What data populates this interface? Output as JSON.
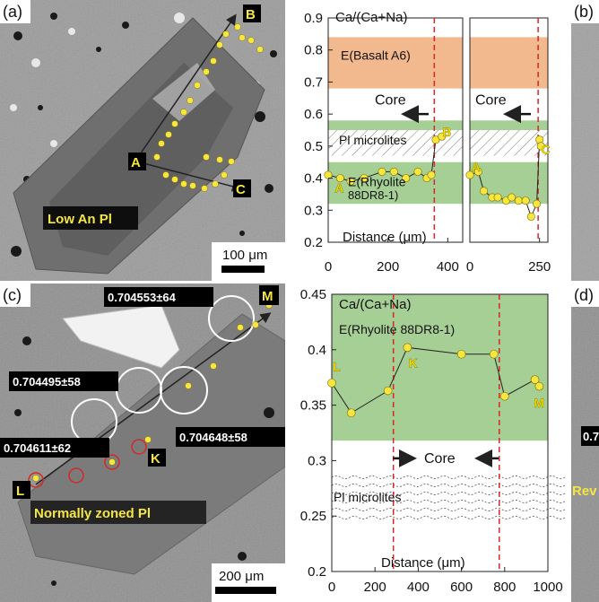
{
  "panels": {
    "a": {
      "tag": "(a)",
      "caption": "Low An Pl",
      "scale": "100 μm",
      "points": [
        "A",
        "B",
        "C"
      ]
    },
    "b": {
      "tag": "(b)"
    },
    "c": {
      "tag": "(c)",
      "caption": "Normally zoned Pl",
      "scale": "200 μm",
      "points": [
        "L",
        "K",
        "M"
      ],
      "isotopes": [
        "0.704553±64",
        "0.704495±58",
        "0.704611±62",
        "0.704648±58"
      ]
    },
    "d": {
      "tag": "(d)",
      "cut_text_1": "0.7",
      "cut_text_2": "Rev"
    }
  },
  "colors": {
    "basalt_band": "#f2b98e",
    "rhyolite_band": "#a6cf95",
    "points": "#f7e63e",
    "core_line": "#d62728"
  },
  "chart_data": [
    {
      "type": "scatter",
      "ylabel": "Ca/(Ca+Na)",
      "xlabel": "Distance (μm)",
      "ylim": [
        0.2,
        0.9
      ],
      "yticks": [
        "0.2",
        "0.3",
        "0.4",
        "0.5",
        "0.6",
        "0.7",
        "0.8",
        "0.9"
      ],
      "bands": [
        {
          "label": "E(Basalt A6)",
          "range": [
            0.68,
            0.84
          ]
        },
        {
          "label": "E(Rhyolite",
          "label2": "88DR8-1)",
          "range": [
            0.32,
            0.45
          ]
        },
        {
          "label": "",
          "range": [
            0.55,
            0.58
          ]
        }
      ],
      "hatch": {
        "label": "Pl microlites",
        "range": [
          0.47,
          0.55
        ]
      },
      "core_label": "Core",
      "series": [
        {
          "xlim": [
            0,
            450
          ],
          "xticks": [
            "0",
            "200",
            "400"
          ],
          "x": [
            0,
            40,
            75,
            120,
            180,
            220,
            260,
            300,
            330,
            345,
            360,
            380
          ],
          "y": [
            0.41,
            0.4,
            0.39,
            0.4,
            0.42,
            0.42,
            0.4,
            0.42,
            0.4,
            0.41,
            0.52,
            0.53
          ],
          "core_x": 355,
          "point_labels": [
            {
              "text": "A",
              "x": 40,
              "y": 0.37
            },
            {
              "text": "B",
              "x": 400,
              "y": 0.545
            }
          ]
        },
        {
          "xlim": [
            0,
            280
          ],
          "xticks": [
            "0",
            "250"
          ],
          "x": [
            0,
            30,
            50,
            80,
            100,
            130,
            150,
            175,
            200,
            220,
            240,
            250,
            255
          ],
          "y": [
            0.41,
            0.42,
            0.36,
            0.34,
            0.34,
            0.33,
            0.34,
            0.33,
            0.33,
            0.28,
            0.32,
            0.52,
            0.5
          ],
          "core_x": 245,
          "point_labels": [
            {
              "text": "A",
              "x": 25,
              "y": 0.435
            },
            {
              "text": "C",
              "x": 275,
              "y": 0.49
            }
          ]
        }
      ]
    },
    {
      "type": "line",
      "ylabel": "Ca/(Ca+Na)",
      "xlabel": "Distance (μm)",
      "xlim": [
        0,
        1000
      ],
      "ylim": [
        0.2,
        0.45
      ],
      "xticks": [
        "0",
        "200",
        "400",
        "600",
        "800",
        "1000"
      ],
      "yticks": [
        "0.2",
        "0.25",
        "0.3",
        "0.35",
        "0.4",
        "0.45"
      ],
      "bands": [
        {
          "label": "E(Rhyolite 88DR8-1)",
          "range": [
            0.318,
            0.45
          ]
        }
      ],
      "hatch_label": "Pl microlites",
      "core_label": "Core",
      "core_lines": [
        285,
        775
      ],
      "x": [
        0,
        90,
        260,
        350,
        600,
        750,
        800,
        940,
        960
      ],
      "y": [
        0.37,
        0.343,
        0.363,
        0.402,
        0.396,
        0.396,
        0.358,
        0.373,
        0.367
      ],
      "point_labels": [
        {
          "text": "L",
          "x": 30,
          "y": 0.385
        },
        {
          "text": "K",
          "x": 380,
          "y": 0.388
        },
        {
          "text": "M",
          "x": 960,
          "y": 0.352
        }
      ]
    }
  ]
}
